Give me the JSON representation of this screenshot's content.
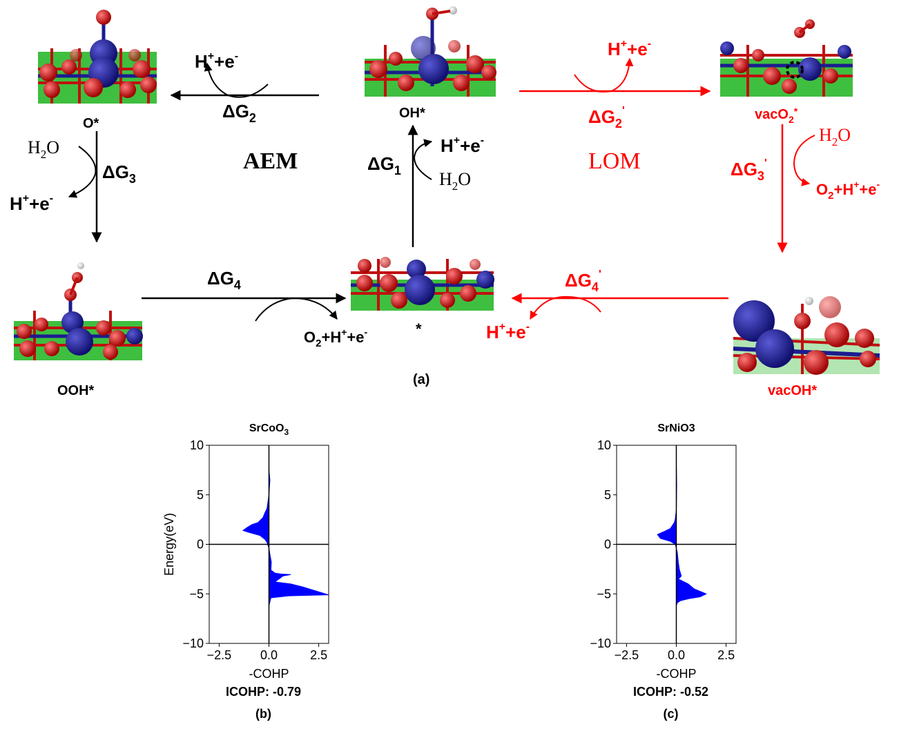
{
  "mechanism": {
    "intermediates": {
      "o_star": "O*",
      "oh_star": "OH*",
      "ooh_star": "OOH*",
      "bare_site": "*",
      "vac_o2_star": {
        "base": "vacO",
        "sub": "2",
        "sup": "*"
      },
      "vac_oh_star": "vacOH*"
    },
    "aem_label": "AEM",
    "lom_label": "LOM",
    "steps": {
      "dg1": {
        "delta": "ΔG",
        "sub": "1"
      },
      "dg2": {
        "delta": "ΔG",
        "sub": "2"
      },
      "dg3": {
        "delta": "ΔG",
        "sub": "3"
      },
      "dg4": {
        "delta": "ΔG",
        "sub": "4"
      },
      "dg2p": {
        "delta": "ΔG",
        "sub": "2",
        "sup": "'"
      },
      "dg3p": {
        "delta": "ΔG",
        "sub": "3",
        "sup": "'"
      },
      "dg4p": {
        "delta": "ΔG",
        "sub": "4",
        "sup": "'"
      }
    },
    "species": {
      "h_plus": "H",
      "plus": "+",
      "e_minus": "+e",
      "minus": "-",
      "water_h": "H",
      "water_two": "2",
      "water_o": "O",
      "o2_o": "O",
      "o2_two": "2",
      "o2_rest": "+H"
    },
    "panel_label": "(a)",
    "colors": {
      "aem": "#000000",
      "lom": "#ff0000",
      "cobalt": "#1c1c8e",
      "oxygen": "#cc1010",
      "strontium": "#2db32d",
      "hydrogen": "#e6e6e6"
    }
  },
  "charts": {
    "chart_data": [
      {
        "type": "area",
        "title": {
          "base": "SrCoO",
          "sub": "3"
        },
        "xlabel": "-COHP",
        "ylabel": "Energy(eV)",
        "xlim": [
          -3.0,
          3.0
        ],
        "ylim": [
          -10,
          10
        ],
        "xticks": [
          "−2.5",
          "0.0",
          "2.5"
        ],
        "yticks": [
          "10",
          "5",
          "0",
          "−5",
          "−10"
        ],
        "icohp_label": "ICOHP:",
        "icohp_value": "-0.79",
        "panel_label": "(b)",
        "fill_color": "#0000ff",
        "series": [
          {
            "x": [
              0,
              0.05,
              0.0,
              -0.1,
              -0.2,
              -0.3,
              -0.55,
              -0.85,
              -1.1,
              -1.3,
              -1.0,
              -0.45,
              -0.2,
              -0.1,
              -0.05,
              0,
              0.05,
              0.12,
              0.1,
              0.3,
              0.6,
              1.1,
              0.7,
              0.3,
              1.1,
              1.7,
              3.0,
              1.0,
              0.1,
              0.05,
              0.0
            ],
            "y": [
              7.5,
              6.5,
              5.0,
              3.6,
              3.2,
              2.7,
              2.2,
              2.0,
              1.7,
              1.4,
              1.2,
              0.9,
              0.5,
              0.2,
              -0.1,
              -0.4,
              -1.0,
              -1.8,
              -2.6,
              -2.9,
              -3.0,
              -3.05,
              -3.2,
              -3.8,
              -4.0,
              -4.3,
              -5.1,
              -5.2,
              -5.4,
              -5.8,
              -6.2
            ]
          }
        ]
      },
      {
        "type": "area",
        "title": {
          "base": "SrNiO3"
        },
        "xlabel": "-COHP",
        "ylabel": "",
        "xlim": [
          -3.0,
          3.0
        ],
        "ylim": [
          -10,
          10
        ],
        "xticks": [
          "−2.5",
          "0.0",
          "2.5"
        ],
        "yticks": [
          "10",
          "5",
          "0",
          "−5",
          "−10"
        ],
        "icohp_label": "ICOHP:",
        "icohp_value": "-0.52",
        "panel_label": "(c)",
        "fill_color": "#0000ff",
        "series": [
          {
            "x": [
              0,
              0.02,
              0.0,
              -0.05,
              -0.1,
              -0.3,
              -0.6,
              -0.95,
              -0.8,
              -0.3,
              -0.05,
              0.05,
              0.1,
              0.15,
              0.25,
              0.1,
              0.3,
              0.6,
              0.9,
              1.5,
              1.2,
              0.6,
              0.2,
              0.05,
              0.0
            ],
            "y": [
              8.0,
              6.0,
              3.5,
              2.6,
              2.2,
              1.6,
              1.3,
              1.0,
              0.6,
              0.3,
              0.0,
              -0.8,
              -1.8,
              -2.5,
              -3.2,
              -3.5,
              -3.7,
              -4.0,
              -4.5,
              -5.0,
              -5.3,
              -5.5,
              -5.7,
              -5.9,
              -6.2
            ]
          }
        ]
      }
    ]
  }
}
